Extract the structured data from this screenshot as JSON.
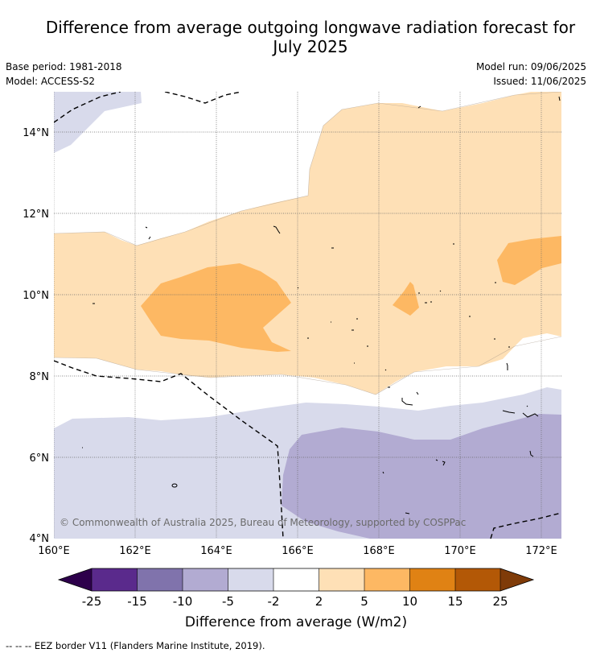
{
  "title_line1": "Difference from average outgoing longwave radiation forecast for",
  "title_line2": "July 2025",
  "base_period": "Base period: 1981-2018",
  "model": "Model: ACCESS-S2",
  "model_run": "Model run: 09/06/2025",
  "issued": "Issued: 11/06/2025",
  "map": {
    "lat_ticks": [
      "14°N",
      "12°N",
      "10°N",
      "8°N",
      "6°N",
      "4°N"
    ],
    "lon_ticks": [
      "160°E",
      "162°E",
      "164°E",
      "166°E",
      "168°E",
      "170°E",
      "172°E"
    ],
    "copyright": "© Commonwealth of Australia 2025, Bureau of Meteorology, supported by COSPPac"
  },
  "colorbar": {
    "label": "Difference from average (W/m2)",
    "ticks": [
      "-25",
      "-15",
      "-10",
      "-5",
      "-2",
      "2",
      "5",
      "10",
      "15",
      "25"
    ],
    "colors": {
      "below_-25": "#2d004b",
      "-25_-15": "#5a2a8c",
      "-15_-10": "#8073ac",
      "-10_-5": "#b2abd2",
      "-5_-2": "#d8daeb",
      "-2_2": "#ffffff",
      "2_5": "#fee0b6",
      "5_10": "#fdb863",
      "10_15": "#e08214",
      "15_25": "#b35806",
      "above_25": "#7f3b08"
    }
  },
  "footer": "--  --  -- EEZ border V11 (Flanders Marine Institute, 2019)."
}
